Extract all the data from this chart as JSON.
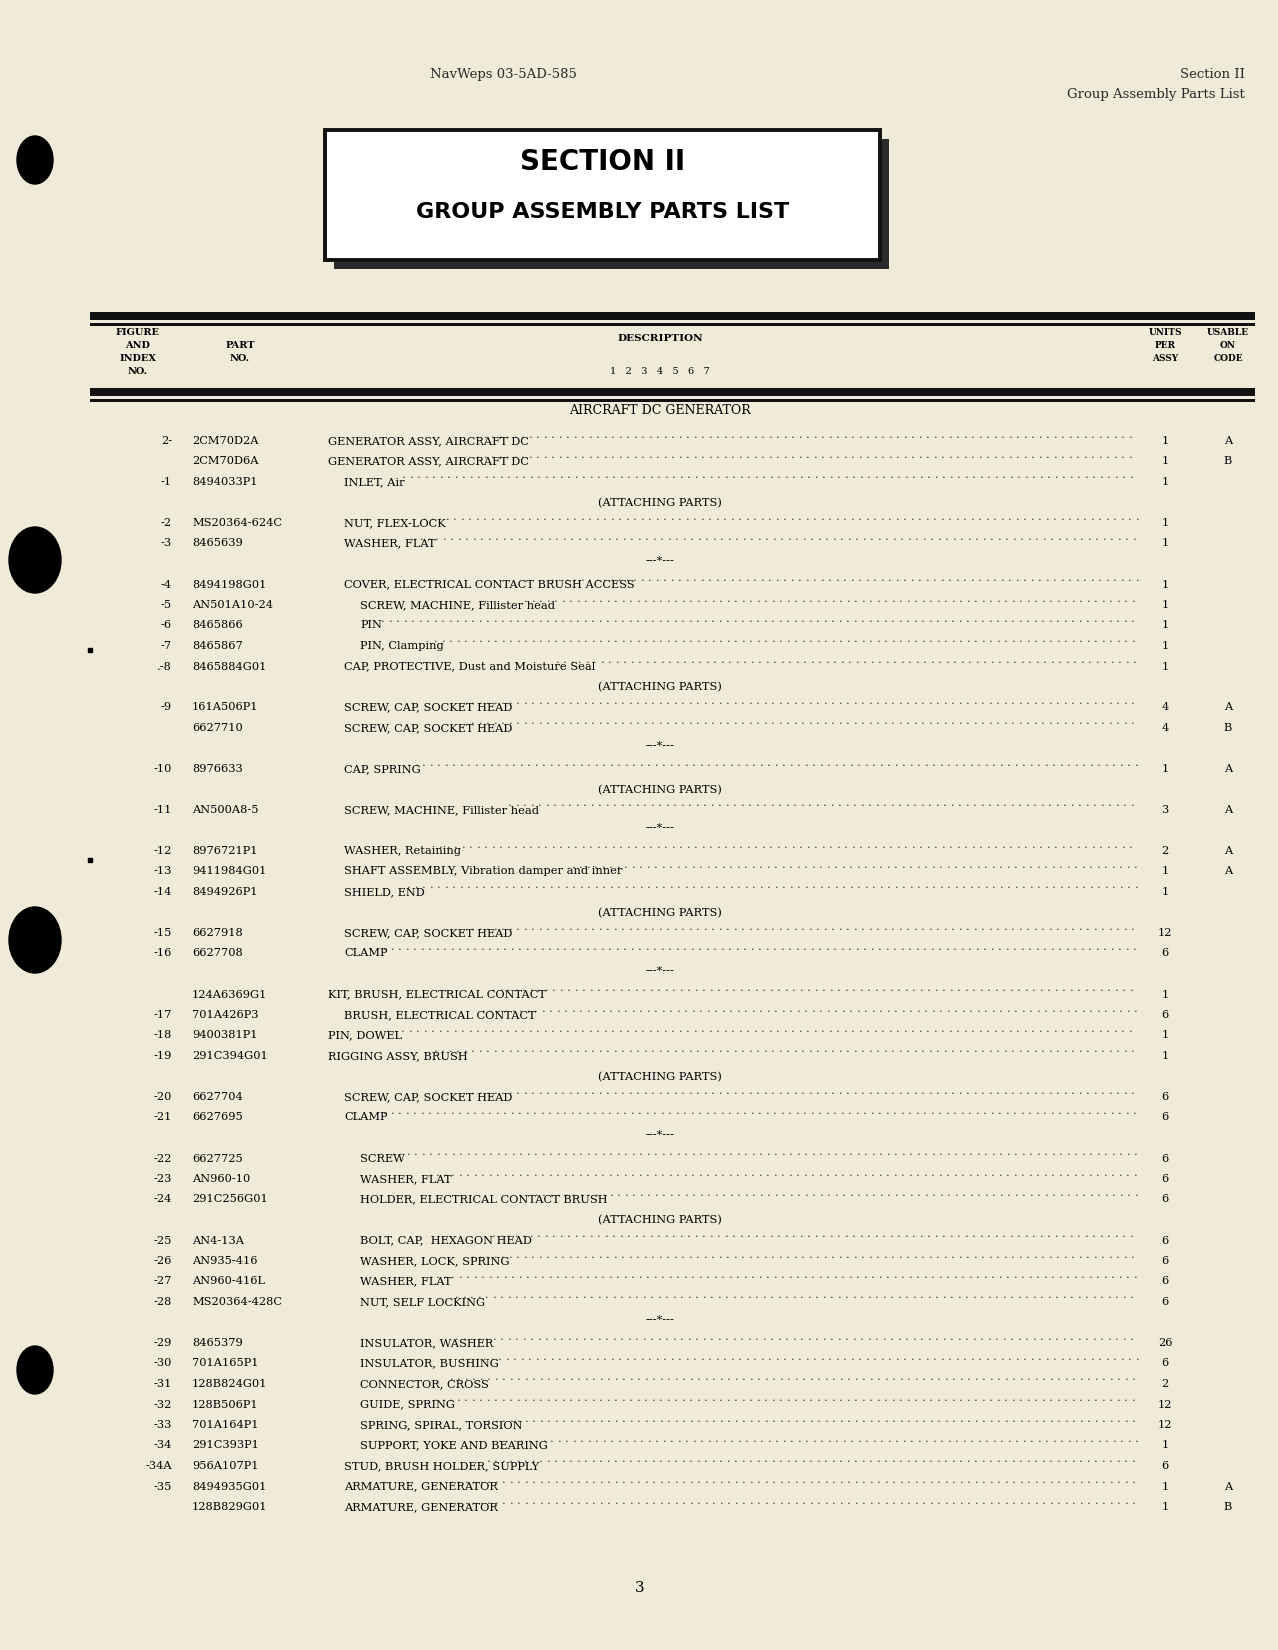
{
  "bg_color": "#f0ead8",
  "header_left": "NavWeps 03-5AD-585",
  "header_right_line1": "Section II",
  "header_right_line2": "Group Assembly Parts List",
  "section_title_line1": "SECTION II",
  "section_title_line2": "GROUP ASSEMBLY PARTS LIST",
  "subheading": "AIRCRAFT DC GENERATOR",
  "page_number": "3",
  "rows": [
    {
      "fig": "2-",
      "part": "2CM70D2A",
      "ind": 0,
      "desc": "GENERATOR ASSY, AIRCRAFT DC",
      "units": "1",
      "code": "A"
    },
    {
      "fig": "",
      "part": "2CM70D6A",
      "ind": 0,
      "desc": "GENERATOR ASSY, AIRCRAFT DC",
      "units": "1",
      "code": "B"
    },
    {
      "fig": "-1",
      "part": "8494033P1",
      "ind": 1,
      "desc": "INLET, Air",
      "units": "1",
      "code": ""
    },
    {
      "fig": "AP",
      "part": "",
      "ind": -1,
      "desc": "(ATTACHING PARTS)",
      "units": "",
      "code": ""
    },
    {
      "fig": "-2",
      "part": "MS20364-624C",
      "ind": 1,
      "desc": "NUT, FLEX-LOCK",
      "units": "1",
      "code": ""
    },
    {
      "fig": "-3",
      "part": "8465639",
      "ind": 1,
      "desc": "WASHER, FLAT",
      "units": "1",
      "code": ""
    },
    {
      "fig": "ST",
      "part": "",
      "ind": -2,
      "desc": "---*---",
      "units": "",
      "code": ""
    },
    {
      "fig": "-4",
      "part": "8494198G01",
      "ind": 1,
      "desc": "COVER, ELECTRICAL CONTACT BRUSH ACCESS",
      "units": "1",
      "code": ""
    },
    {
      "fig": "-5",
      "part": "AN501A10-24",
      "ind": 2,
      "desc": "SCREW, MACHINE, Fillister head",
      "units": "1",
      "code": ""
    },
    {
      "fig": "-6",
      "part": "8465866",
      "ind": 2,
      "desc": "PIN",
      "units": "1",
      "code": ""
    },
    {
      "fig": "-7",
      "part": "8465867",
      "ind": 2,
      "desc": "PIN, Clamping",
      "units": "1",
      "code": ""
    },
    {
      "fig": ".-8",
      "part": "8465884G01",
      "ind": 1,
      "desc": "CAP, PROTECTIVE, Dust and Moisture Seal",
      "units": "1",
      "code": ""
    },
    {
      "fig": "AP",
      "part": "",
      "ind": -1,
      "desc": "(ATTACHING PARTS)",
      "units": "",
      "code": ""
    },
    {
      "fig": "-9",
      "part": "161A506P1",
      "ind": 1,
      "desc": "SCREW, CAP, SOCKET HEAD",
      "units": "4",
      "code": "A"
    },
    {
      "fig": "",
      "part": "6627710",
      "ind": 1,
      "desc": "SCREW, CAP, SOCKET HEAD",
      "units": "4",
      "code": "B"
    },
    {
      "fig": "ST",
      "part": "",
      "ind": -2,
      "desc": "---*---",
      "units": "",
      "code": ""
    },
    {
      "fig": "-10",
      "part": "8976633",
      "ind": 1,
      "desc": "CAP, SPRING",
      "units": "1",
      "code": "A"
    },
    {
      "fig": "AP",
      "part": "",
      "ind": -1,
      "desc": "(ATTACHING PARTS)",
      "units": "",
      "code": ""
    },
    {
      "fig": "-11",
      "part": "AN500A8-5",
      "ind": 1,
      "desc": "SCREW, MACHINE, Fillister head",
      "units": "3",
      "code": "A"
    },
    {
      "fig": "ST",
      "part": "",
      "ind": -2,
      "desc": "---*---",
      "units": "",
      "code": ""
    },
    {
      "fig": "-12",
      "part": "8976721P1",
      "ind": 1,
      "desc": "WASHER, Retaining",
      "units": "2",
      "code": "A"
    },
    {
      "fig": "-13",
      "part": "9411984G01",
      "ind": 1,
      "desc": "SHAFT ASSEMBLY, Vibration damper and inner",
      "units": "1",
      "code": "A"
    },
    {
      "fig": "-14",
      "part": "8494926P1",
      "ind": 1,
      "desc": "SHIELD, END",
      "units": "1",
      "code": ""
    },
    {
      "fig": "AP",
      "part": "",
      "ind": -1,
      "desc": "(ATTACHING PARTS)",
      "units": "",
      "code": ""
    },
    {
      "fig": "-15",
      "part": "6627918",
      "ind": 1,
      "desc": "SCREW, CAP, SOCKET HEAD",
      "units": "12",
      "code": ""
    },
    {
      "fig": "-16",
      "part": "6627708",
      "ind": 1,
      "desc": "CLAMP",
      "units": "6",
      "code": ""
    },
    {
      "fig": "ST",
      "part": "",
      "ind": -2,
      "desc": "---*---",
      "units": "",
      "code": ""
    },
    {
      "fig": "",
      "part": "124A6369G1",
      "ind": 0,
      "desc": "KIT, BRUSH, ELECTRICAL CONTACT",
      "units": "1",
      "code": ""
    },
    {
      "fig": "-17",
      "part": "701A426P3",
      "ind": 1,
      "desc": "BRUSH, ELECTRICAL CONTACT",
      "units": "6",
      "code": ""
    },
    {
      "fig": "-18",
      "part": "9400381P1",
      "ind": 0,
      "desc": "PIN, DOWEL",
      "units": "1",
      "code": ""
    },
    {
      "fig": "-19",
      "part": "291C394G01",
      "ind": 0,
      "desc": "RIGGING ASSY, BRUSH",
      "units": "1",
      "code": ""
    },
    {
      "fig": "AP",
      "part": "",
      "ind": -1,
      "desc": "(ATTACHING PARTS)",
      "units": "",
      "code": ""
    },
    {
      "fig": "-20",
      "part": "6627704",
      "ind": 1,
      "desc": "SCREW, CAP, SOCKET HEAD",
      "units": "6",
      "code": ""
    },
    {
      "fig": "-21",
      "part": "6627695",
      "ind": 1,
      "desc": "CLAMP",
      "units": "6",
      "code": ""
    },
    {
      "fig": "ST",
      "part": "",
      "ind": -2,
      "desc": "---*---",
      "units": "",
      "code": ""
    },
    {
      "fig": "-22",
      "part": "6627725",
      "ind": 2,
      "desc": "SCREW",
      "units": "6",
      "code": ""
    },
    {
      "fig": "-23",
      "part": "AN960-10",
      "ind": 2,
      "desc": "WASHER, FLAT",
      "units": "6",
      "code": ""
    },
    {
      "fig": "-24",
      "part": "291C256G01",
      "ind": 2,
      "desc": "HOLDER, ELECTRICAL CONTACT BRUSH",
      "units": "6",
      "code": ""
    },
    {
      "fig": "AP",
      "part": "",
      "ind": -1,
      "desc": "(ATTACHING PARTS)",
      "units": "",
      "code": ""
    },
    {
      "fig": "-25",
      "part": "AN4-13A",
      "ind": 2,
      "desc": "BOLT, CAP,  HEXAGON HEAD",
      "units": "6",
      "code": ""
    },
    {
      "fig": "-26",
      "part": "AN935-416",
      "ind": 2,
      "desc": "WASHER, LOCK, SPRING",
      "units": "6",
      "code": ""
    },
    {
      "fig": "-27",
      "part": "AN960-416L",
      "ind": 2,
      "desc": "WASHER, FLAT",
      "units": "6",
      "code": ""
    },
    {
      "fig": "-28",
      "part": "MS20364-428C",
      "ind": 2,
      "desc": "NUT, SELF LOCKING",
      "units": "6",
      "code": ""
    },
    {
      "fig": "ST",
      "part": "",
      "ind": -2,
      "desc": "---*---",
      "units": "",
      "code": ""
    },
    {
      "fig": "-29",
      "part": "8465379",
      "ind": 2,
      "desc": "INSULATOR, WASHER",
      "units": "26",
      "code": ""
    },
    {
      "fig": "-30",
      "part": "701A165P1",
      "ind": 2,
      "desc": "INSULATOR, BUSHING",
      "units": "6",
      "code": ""
    },
    {
      "fig": "-31",
      "part": "128B824G01",
      "ind": 2,
      "desc": "CONNECTOR, CROSS",
      "units": "2",
      "code": ""
    },
    {
      "fig": "-32",
      "part": "128B506P1",
      "ind": 2,
      "desc": "GUIDE, SPRING",
      "units": "12",
      "code": ""
    },
    {
      "fig": "-33",
      "part": "701A164P1",
      "ind": 2,
      "desc": "SPRING, SPIRAL, TORSION",
      "units": "12",
      "code": ""
    },
    {
      "fig": "-34",
      "part": "291C393P1",
      "ind": 2,
      "desc": "SUPPORT, YOKE AND BEARING",
      "units": "1",
      "code": ""
    },
    {
      "fig": "-34A",
      "part": "956A107P1",
      "ind": 1,
      "desc": "STUD, BRUSH HOLDER, SUPPLY",
      "units": "6",
      "code": ""
    },
    {
      "fig": "-35",
      "part": "8494935G01",
      "ind": 1,
      "desc": "ARMATURE, GENERATOR",
      "units": "1",
      "code": "A"
    },
    {
      "fig": "",
      "part": "128B829G01",
      "ind": 1,
      "desc": "ARMATURE, GENERATOR",
      "units": "1",
      "code": "B"
    }
  ]
}
